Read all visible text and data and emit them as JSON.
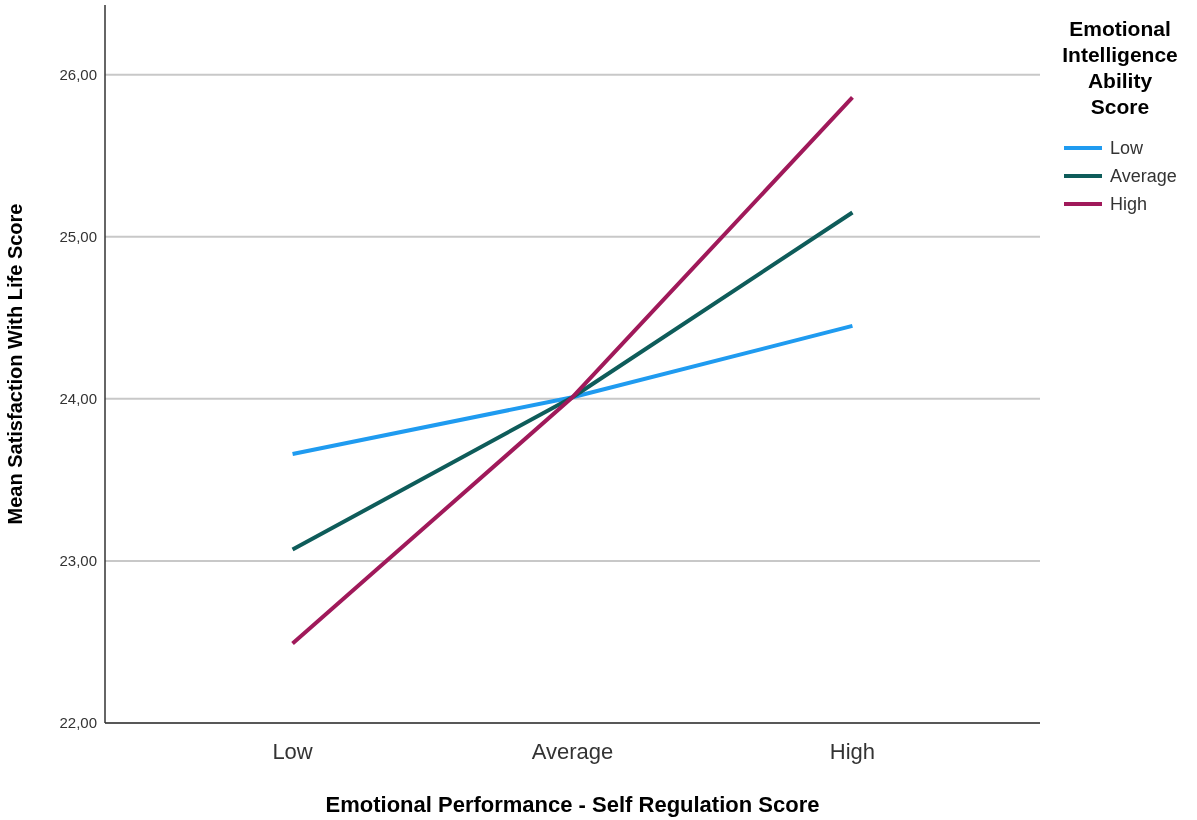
{
  "chart_data": {
    "type": "line",
    "xlabel": "Emotional Performance - Self Regulation Score",
    "ylabel": "Mean Satisfaction With Life Score",
    "legend_title": "Emotional Intelligence Ability Score",
    "categories": [
      "Low",
      "Average",
      "High"
    ],
    "series": [
      {
        "name": "Low",
        "color": "#1f9bf0",
        "values": [
          23.66,
          24.01,
          24.45
        ]
      },
      {
        "name": "Average",
        "color": "#0e5c5a",
        "values": [
          23.07,
          24.01,
          25.15
        ]
      },
      {
        "name": "High",
        "color": "#a0195a",
        "values": [
          22.49,
          24.01,
          25.86
        ]
      }
    ],
    "ylim": [
      22,
      26.43
    ],
    "yticks": [
      {
        "value": 22,
        "label": "22,00"
      },
      {
        "value": 23,
        "label": "23,00"
      },
      {
        "value": 24,
        "label": "24,00"
      },
      {
        "value": 25,
        "label": "25,00"
      },
      {
        "value": 26,
        "label": "26,00"
      }
    ],
    "grid": "y",
    "legend": "right",
    "marker": "none",
    "line_style": "solid"
  }
}
